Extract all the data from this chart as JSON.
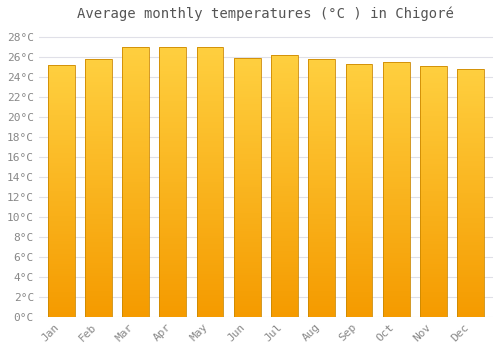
{
  "title": "Average monthly temperatures (°C ) in Chigoré",
  "months": [
    "Jan",
    "Feb",
    "Mar",
    "Apr",
    "May",
    "Jun",
    "Jul",
    "Aug",
    "Sep",
    "Oct",
    "Nov",
    "Dec"
  ],
  "values": [
    25.2,
    25.8,
    27.0,
    27.0,
    27.0,
    25.9,
    26.2,
    25.8,
    25.3,
    25.5,
    25.1,
    24.8
  ],
  "bar_color": "#FBA820",
  "bar_edge_color": "#CC8800",
  "ylim": [
    0,
    29
  ],
  "yticks": [
    0,
    2,
    4,
    6,
    8,
    10,
    12,
    14,
    16,
    18,
    20,
    22,
    24,
    26,
    28
  ],
  "background_color": "#ffffff",
  "grid_color": "#e0e0e8",
  "title_fontsize": 10,
  "tick_fontsize": 8,
  "tick_color": "#888888"
}
